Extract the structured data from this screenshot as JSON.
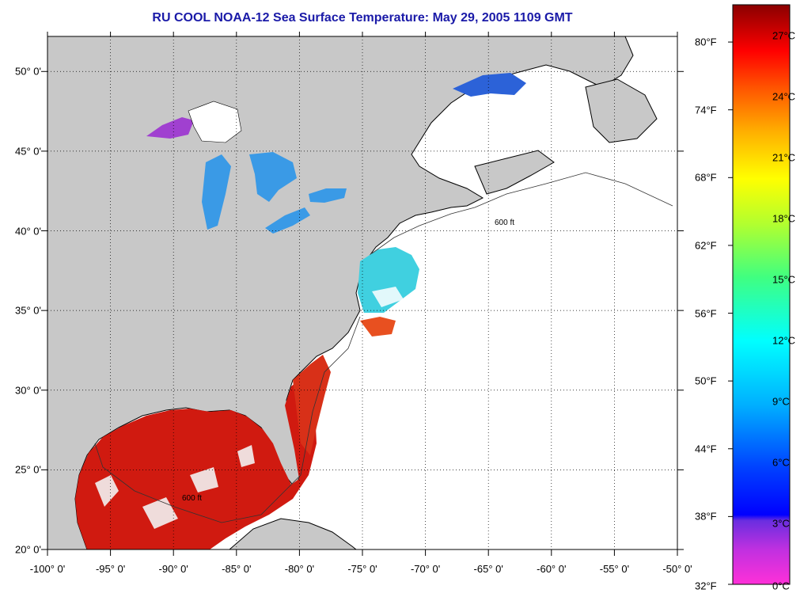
{
  "title": "RU COOL  NOAA-12  Sea Surface Temperature:  May 29, 2005 1109 GMT",
  "map": {
    "lon_range": [
      -100,
      -50
    ],
    "lat_range": [
      20,
      52.2
    ],
    "lon_ticks": [
      "-100° 0'",
      "-95° 0'",
      "-90° 0'",
      "-85° 0'",
      "-80° 0'",
      "-75° 0'",
      "-70° 0'",
      "-65° 0'",
      "-60° 0'",
      "-55° 0'",
      "-50° 0'"
    ],
    "lat_ticks": [
      "20° 0'",
      "25° 0'",
      "30° 0'",
      "35° 0'",
      "40° 0'",
      "45° 0'",
      "50° 0'"
    ],
    "contour_label": "600 ft",
    "colors": {
      "land": "#c8c8c8",
      "cloud": "#ffffff",
      "gulf_warm": "#d01a10",
      "lakes": "#3a9ae6",
      "shelf": "#40d0e0"
    }
  },
  "colorbar": {
    "fahrenheit_ticks": [
      "80°F",
      "74°F",
      "68°F",
      "62°F",
      "56°F",
      "50°F",
      "44°F",
      "38°F",
      "32°F"
    ],
    "celsius_ticks": [
      "27°C",
      "24°C",
      "21°C",
      "18°C",
      "15°C",
      "12°C",
      "9°C",
      "6°C",
      "3°C",
      "0°C"
    ],
    "range_c": [
      0,
      28.5
    ]
  }
}
